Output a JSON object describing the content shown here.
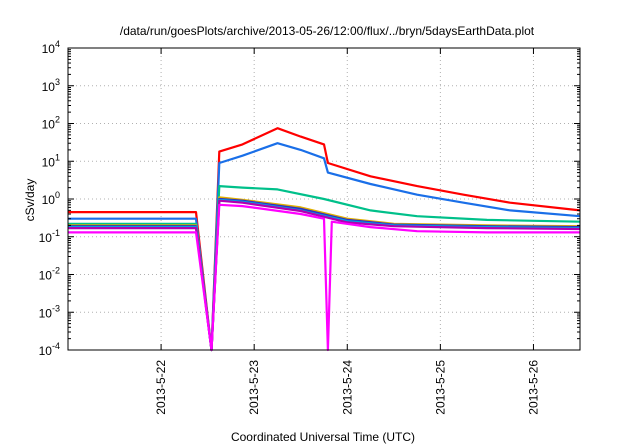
{
  "chart_data": {
    "type": "line",
    "title": "/data/run/goesPlots/archive/2013-05-26/12:00/flux/../bryn/5daysEarthData.plot",
    "xlabel": "Coordinated Universal Time (UTC)",
    "ylabel": "cSv/day",
    "yscale": "log",
    "ylim": [
      0.0001,
      10000
    ],
    "xlim": [
      "2013-05-21 00:00",
      "2013-05-26 12:00"
    ],
    "grid": true,
    "xticks": [
      "2013-5-22",
      "2013-5-23",
      "2013-5-24",
      "2013-5-25",
      "2013-5-26"
    ],
    "yticks": [
      {
        "base": "10",
        "exp": "-4"
      },
      {
        "base": "10",
        "exp": "-3"
      },
      {
        "base": "10",
        "exp": "-2"
      },
      {
        "base": "10",
        "exp": "-1"
      },
      {
        "base": "10",
        "exp": "0"
      },
      {
        "base": "10",
        "exp": "1"
      },
      {
        "base": "10",
        "exp": "2"
      },
      {
        "base": "10",
        "exp": "3"
      },
      {
        "base": "10",
        "exp": "4"
      }
    ],
    "series": [
      {
        "color": "#ff0000",
        "points": [
          [
            "2013-05-21 00:00",
            0.45
          ],
          [
            "2013-05-22 09:00",
            0.45
          ],
          [
            "2013-05-22 13:00",
            0.0001
          ],
          [
            "2013-05-22 15:00",
            18
          ],
          [
            "2013-05-22 21:00",
            28
          ],
          [
            "2013-05-23 06:00",
            75
          ],
          [
            "2013-05-23 12:00",
            45
          ],
          [
            "2013-05-23 18:00",
            28
          ],
          [
            "2013-05-23 19:00",
            9
          ],
          [
            "2013-05-24 06:00",
            4
          ],
          [
            "2013-05-24 18:00",
            2.2
          ],
          [
            "2013-05-25 06:00",
            1.3
          ],
          [
            "2013-05-25 18:00",
            0.8
          ],
          [
            "2013-05-26 12:00",
            0.5
          ]
        ]
      },
      {
        "color": "#1a6fe8",
        "points": [
          [
            "2013-05-21 00:00",
            0.3
          ],
          [
            "2013-05-22 09:00",
            0.3
          ],
          [
            "2013-05-22 13:00",
            0.0001
          ],
          [
            "2013-05-22 15:00",
            9
          ],
          [
            "2013-05-22 21:00",
            14
          ],
          [
            "2013-05-23 06:00",
            30
          ],
          [
            "2013-05-23 12:00",
            20
          ],
          [
            "2013-05-23 18:00",
            12
          ],
          [
            "2013-05-23 19:00",
            5
          ],
          [
            "2013-05-24 06:00",
            2.5
          ],
          [
            "2013-05-24 18:00",
            1.3
          ],
          [
            "2013-05-25 06:00",
            0.8
          ],
          [
            "2013-05-25 18:00",
            0.5
          ],
          [
            "2013-05-26 12:00",
            0.35
          ]
        ]
      },
      {
        "color": "#00c08a",
        "points": [
          [
            "2013-05-21 00:00",
            0.22
          ],
          [
            "2013-05-22 09:00",
            0.22
          ],
          [
            "2013-05-22 13:00",
            0.0001
          ],
          [
            "2013-05-22 15:00",
            2.2
          ],
          [
            "2013-05-22 21:00",
            2.0
          ],
          [
            "2013-05-23 06:00",
            1.8
          ],
          [
            "2013-05-23 18:00",
            1.0
          ],
          [
            "2013-05-24 06:00",
            0.5
          ],
          [
            "2013-05-24 18:00",
            0.35
          ],
          [
            "2013-05-25 12:00",
            0.28
          ],
          [
            "2013-05-26 12:00",
            0.25
          ]
        ]
      },
      {
        "color": "#e0b000",
        "points": [
          [
            "2013-05-21 00:00",
            0.2
          ],
          [
            "2013-05-22 09:00",
            0.2
          ],
          [
            "2013-05-22 13:00",
            0.0001
          ],
          [
            "2013-05-22 15:00",
            1.1
          ],
          [
            "2013-05-22 21:00",
            0.95
          ],
          [
            "2013-05-23 12:00",
            0.6
          ],
          [
            "2013-05-24 00:00",
            0.3
          ],
          [
            "2013-05-24 12:00",
            0.22
          ],
          [
            "2013-05-25 12:00",
            0.2
          ],
          [
            "2013-05-26 12:00",
            0.19
          ]
        ]
      },
      {
        "color": "#3030c0",
        "points": [
          [
            "2013-05-21 00:00",
            0.19
          ],
          [
            "2013-05-22 09:00",
            0.19
          ],
          [
            "2013-05-22 13:00",
            0.0001
          ],
          [
            "2013-05-22 15:00",
            1.0
          ],
          [
            "2013-05-22 21:00",
            0.9
          ],
          [
            "2013-05-23 12:00",
            0.55
          ],
          [
            "2013-05-24 00:00",
            0.28
          ],
          [
            "2013-05-24 12:00",
            0.21
          ],
          [
            "2013-05-25 12:00",
            0.19
          ],
          [
            "2013-05-26 12:00",
            0.18
          ]
        ]
      },
      {
        "color": "#00a0e0",
        "points": [
          [
            "2013-05-21 00:00",
            0.18
          ],
          [
            "2013-05-22 09:00",
            0.18
          ],
          [
            "2013-05-22 13:00",
            0.0001
          ],
          [
            "2013-05-22 15:00",
            0.95
          ],
          [
            "2013-05-22 21:00",
            0.85
          ],
          [
            "2013-05-23 12:00",
            0.5
          ],
          [
            "2013-05-24 00:00",
            0.26
          ],
          [
            "2013-05-24 12:00",
            0.2
          ],
          [
            "2013-05-25 12:00",
            0.18
          ],
          [
            "2013-05-26 12:00",
            0.17
          ]
        ]
      },
      {
        "color": "#b000b0",
        "points": [
          [
            "2013-05-21 00:00",
            0.17
          ],
          [
            "2013-05-22 09:00",
            0.17
          ],
          [
            "2013-05-22 13:00",
            0.0001
          ],
          [
            "2013-05-22 15:00",
            0.9
          ],
          [
            "2013-05-22 21:00",
            0.8
          ],
          [
            "2013-05-23 12:00",
            0.48
          ],
          [
            "2013-05-24 00:00",
            0.24
          ],
          [
            "2013-05-24 12:00",
            0.19
          ],
          [
            "2013-05-25 12:00",
            0.17
          ],
          [
            "2013-05-26 12:00",
            0.16
          ]
        ]
      },
      {
        "color": "#ff00ff",
        "points": [
          [
            "2013-05-21 00:00",
            0.13
          ],
          [
            "2013-05-22 09:00",
            0.13
          ],
          [
            "2013-05-22 13:00",
            0.0001
          ],
          [
            "2013-05-22 15:00",
            0.7
          ],
          [
            "2013-05-22 21:00",
            0.65
          ],
          [
            "2013-05-23 12:00",
            0.4
          ],
          [
            "2013-05-23 18:00",
            0.3
          ],
          [
            "2013-05-23 19:00",
            0.0001
          ],
          [
            "2013-05-23 20:00",
            0.25
          ],
          [
            "2013-05-24 06:00",
            0.18
          ],
          [
            "2013-05-24 18:00",
            0.14
          ],
          [
            "2013-05-25 12:00",
            0.13
          ],
          [
            "2013-05-26 12:00",
            0.13
          ]
        ]
      }
    ]
  }
}
